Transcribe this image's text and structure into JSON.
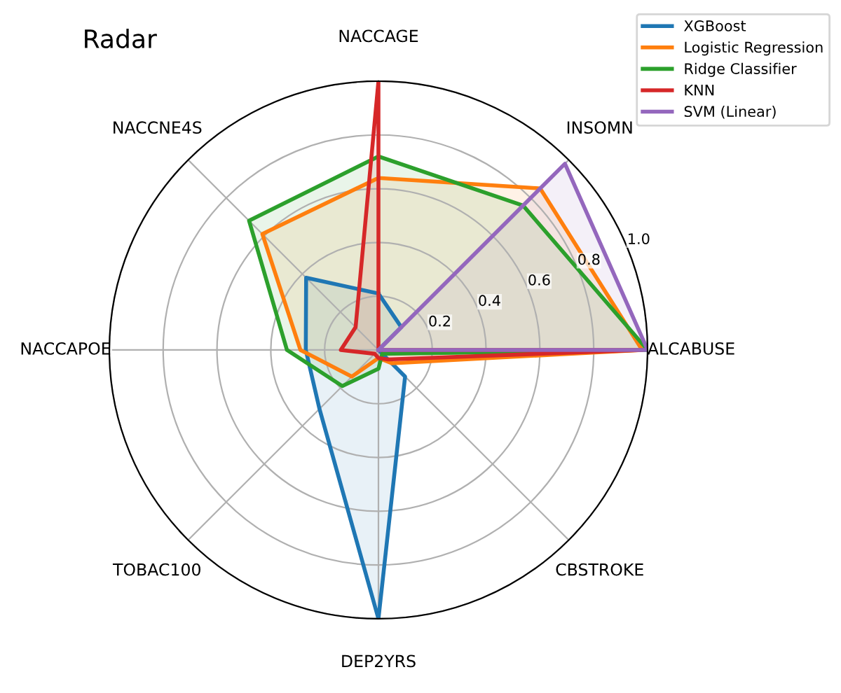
{
  "chart_data": {
    "type": "radar",
    "title": "Radar",
    "categories": [
      "NACCAGE",
      "INSOMN",
      "ALCABUSE",
      "CBSTROKE",
      "DEP2YRS",
      "TOBAC100",
      "NACCAPOE",
      "NACCNE4S"
    ],
    "ylim": [
      0,
      1
    ],
    "yticks": [
      0.2,
      0.4,
      0.6,
      0.8,
      {
        "value": 1.0,
        "label": "1.0"
      }
    ],
    "grid": true,
    "legend": "top right",
    "series": [
      {
        "name": "XGBoost",
        "color": "#1f77b4",
        "values": [
          0.21,
          0.12,
          0.0,
          0.14,
          1.0,
          0.31,
          0.27,
          0.38
        ]
      },
      {
        "name": "Logistic Regression",
        "color": "#ff7f0e",
        "values": [
          0.64,
          0.85,
          0.98,
          0.07,
          0.03,
          0.14,
          0.29,
          0.61
        ]
      },
      {
        "name": "Ridge Classifier",
        "color": "#2ca02c",
        "values": [
          0.72,
          0.76,
          1.0,
          0.02,
          0.07,
          0.19,
          0.34,
          0.68
        ]
      },
      {
        "name": "KNN",
        "color": "#d62728",
        "values": [
          1.0,
          0.0,
          0.98,
          0.05,
          0.03,
          0.02,
          0.14,
          0.12
        ]
      },
      {
        "name": "SVM (Linear)",
        "color": "#9467bd",
        "values": [
          0.0,
          0.98,
          1.0,
          0.0,
          0.0,
          0.0,
          0.0,
          0.0
        ]
      }
    ]
  }
}
